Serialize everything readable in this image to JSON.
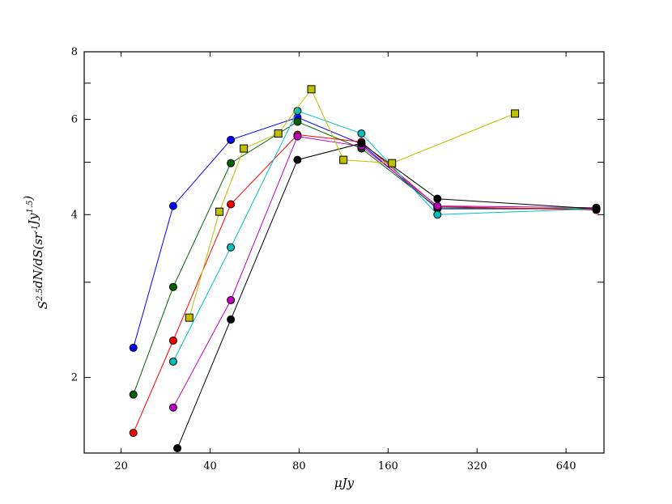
{
  "chart_data": {
    "type": "line",
    "title": "",
    "xlabel": "μJy",
    "ylabel": "S^{2.5}dN/dS(sr^{-1}Jy^{1.5})",
    "xscale": "log2",
    "yscale": "log",
    "xlim": [
      15,
      860
    ],
    "ylim": [
      1.45,
      8
    ],
    "xticks": [
      20,
      40,
      80,
      160,
      320,
      640
    ],
    "xtick_labels": [
      "20",
      "40",
      "80",
      "160",
      "320",
      "640"
    ],
    "yticks": [
      2,
      4,
      6,
      8
    ],
    "ytick_labels": [
      "2",
      "4",
      "6",
      "8"
    ],
    "yminor_ticks": [
      3,
      5,
      7
    ],
    "grid": false,
    "legend": "none",
    "series": [
      {
        "color": "#0000ff",
        "marker": "circle",
        "x": [
          22,
          30,
          47,
          79,
          130,
          235,
          810
        ],
        "y": [
          2.27,
          4.15,
          5.5,
          6.05,
          5.4,
          4.1,
          4.1
        ]
      },
      {
        "color": "#006400",
        "marker": "circle",
        "x": [
          22,
          30,
          47,
          79,
          130,
          235,
          810
        ],
        "y": [
          1.86,
          2.94,
          4.98,
          5.94,
          5.3,
          4.12,
          4.1
        ]
      },
      {
        "color": "#ff0000",
        "marker": "circle",
        "x": [
          22,
          30,
          47,
          79,
          130,
          235,
          810
        ],
        "y": [
          1.58,
          2.34,
          4.18,
          5.62,
          5.45,
          4.14,
          4.08
        ]
      },
      {
        "color": "#00c0c0",
        "marker": "circle",
        "x": [
          30,
          47,
          79,
          130,
          235,
          810
        ],
        "y": [
          2.14,
          3.48,
          6.22,
          5.65,
          4.0,
          4.1
        ]
      },
      {
        "color": "#c000c0",
        "marker": "circle",
        "x": [
          30,
          47,
          79,
          130,
          235,
          810
        ],
        "y": [
          1.76,
          2.78,
          5.58,
          5.35,
          4.15,
          4.12
        ]
      },
      {
        "color": "#000000",
        "marker": "circle",
        "x": [
          31,
          47,
          79,
          130,
          235,
          810
        ],
        "y": [
          1.48,
          2.56,
          5.05,
          5.42,
          4.28,
          4.1
        ]
      },
      {
        "color": "#c0c000",
        "marker": "square",
        "x": [
          34,
          43,
          52,
          68,
          88,
          113,
          165,
          430
        ],
        "y": [
          2.58,
          4.05,
          5.3,
          5.65,
          6.82,
          5.05,
          4.98,
          6.15
        ]
      }
    ]
  }
}
